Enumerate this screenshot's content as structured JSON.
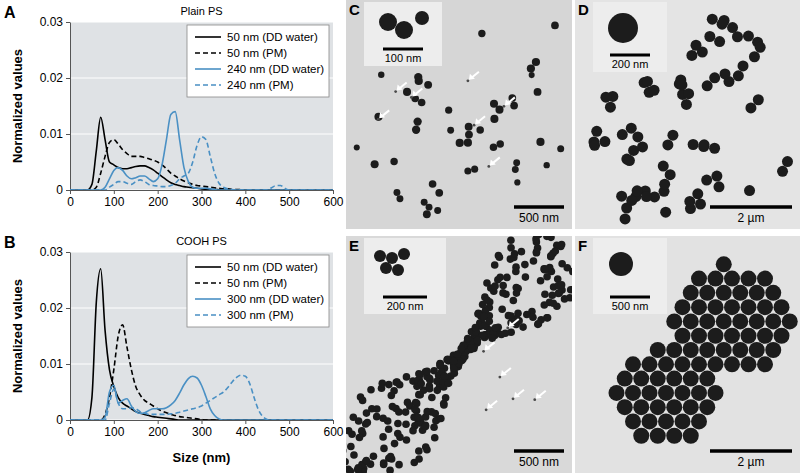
{
  "chart_data": [
    {
      "type": "line",
      "panel_label": "A",
      "title": "Plain PS",
      "y_label": "Normalized values",
      "xlim": [
        0,
        600
      ],
      "xticks": [
        0,
        100,
        200,
        300,
        400,
        500,
        600
      ],
      "ylim": [
        0,
        0.03
      ],
      "yticks": [
        0,
        0.01,
        0.02,
        0.03
      ],
      "grid": true,
      "legend": "upper right",
      "x": [
        0,
        10,
        20,
        30,
        40,
        50,
        60,
        70,
        80,
        90,
        100,
        110,
        120,
        130,
        140,
        150,
        160,
        170,
        180,
        190,
        200,
        210,
        220,
        230,
        240,
        250,
        260,
        270,
        280,
        290,
        300,
        310,
        320,
        330,
        340,
        350,
        360,
        370,
        380,
        390,
        400,
        410,
        420,
        430,
        440,
        450,
        460,
        470,
        480,
        490,
        500,
        550,
        600
      ],
      "series": [
        {
          "name": "50 nm (DD water)",
          "color": "#000000",
          "line_style": "solid",
          "values": [
            0,
            0,
            0,
            0,
            0,
            0.001,
            0.007,
            0.013,
            0.009,
            0.005,
            0.0045,
            0.004,
            0.0038,
            0.0038,
            0.004,
            0.0042,
            0.0043,
            0.0043,
            0.004,
            0.0036,
            0.003,
            0.0024,
            0.0018,
            0.0013,
            0.001,
            0.0008,
            0.0006,
            0.0005,
            0.0004,
            0.0003,
            0.0002,
            0.00015,
            0.0001,
            0.0001,
            5e-05,
            0,
            0,
            0,
            0,
            0,
            0,
            0,
            0,
            0,
            0,
            0,
            0,
            0,
            0,
            0,
            0,
            0,
            0
          ]
        },
        {
          "name": "50 nm (PM)",
          "color": "#000000",
          "line_style": "dashed",
          "values": [
            0,
            0,
            0,
            0,
            0,
            0,
            0.0005,
            0.003,
            0.006,
            0.0085,
            0.009,
            0.0082,
            0.0072,
            0.0065,
            0.006,
            0.006,
            0.006,
            0.0058,
            0.0056,
            0.0053,
            0.005,
            0.0045,
            0.0038,
            0.003,
            0.0025,
            0.002,
            0.0016,
            0.0013,
            0.001,
            0.0008,
            0.0007,
            0.0006,
            0.0005,
            0.0004,
            0.0003,
            0.0002,
            0.0002,
            0.0001,
            0.0001,
            5e-05,
            0,
            0,
            0,
            0,
            0,
            0,
            0,
            0,
            0,
            0,
            0,
            0,
            0
          ]
        },
        {
          "name": "240 nm (DD water)",
          "color": "#4a90c4",
          "line_style": "solid",
          "values": [
            0,
            0,
            0,
            0,
            0,
            0,
            0,
            0,
            0.0005,
            0.002,
            0.0035,
            0.004,
            0.0035,
            0.0025,
            0.002,
            0.0022,
            0.0025,
            0.0025,
            0.002,
            0.0015,
            0.002,
            0.0045,
            0.009,
            0.0135,
            0.014,
            0.009,
            0.004,
            0.0015,
            0.0005,
            0.0003,
            0.0003,
            0.0003,
            0.0002,
            0.0001,
            0,
            0,
            0,
            0,
            0,
            0,
            0,
            0,
            0,
            0,
            0,
            0,
            0,
            0,
            0,
            0,
            0,
            0,
            0
          ]
        },
        {
          "name": "240 nm (PM)",
          "color": "#4a90c4",
          "line_style": "dashed",
          "values": [
            0,
            0,
            0,
            0,
            0,
            0,
            0,
            0,
            0,
            0.0005,
            0.001,
            0.0015,
            0.0015,
            0.0012,
            0.001,
            0.0015,
            0.0018,
            0.0015,
            0.001,
            0.0008,
            0.0007,
            0.0006,
            0.0006,
            0.0008,
            0.0012,
            0.002,
            0.0025,
            0.003,
            0.005,
            0.008,
            0.0095,
            0.009,
            0.006,
            0.003,
            0.0012,
            0.0005,
            0.0002,
            0.0001,
            0,
            0,
            0,
            0,
            0,
            0,
            0,
            0,
            0.0004,
            0.0008,
            0.0008,
            0.0003,
            0,
            0,
            0
          ]
        }
      ]
    },
    {
      "type": "line",
      "panel_label": "B",
      "title": "COOH PS",
      "y_label": "Normalized values",
      "x_label": "Size (nm)",
      "xlim": [
        0,
        600
      ],
      "xticks": [
        0,
        100,
        200,
        300,
        400,
        500,
        600
      ],
      "ylim": [
        0,
        0.03
      ],
      "yticks": [
        0,
        0.01,
        0.02,
        0.03
      ],
      "grid": true,
      "legend": "upper right",
      "x": [
        0,
        10,
        20,
        30,
        40,
        50,
        60,
        70,
        80,
        90,
        100,
        110,
        120,
        130,
        140,
        150,
        160,
        170,
        180,
        190,
        200,
        210,
        220,
        230,
        240,
        250,
        260,
        270,
        280,
        290,
        300,
        310,
        320,
        330,
        340,
        350,
        360,
        370,
        380,
        390,
        400,
        410,
        420,
        430,
        440,
        450,
        460,
        470,
        480,
        490,
        500,
        550,
        600
      ],
      "series": [
        {
          "name": "50 nm (DD water)",
          "color": "#000000",
          "line_style": "solid",
          "values": [
            0,
            0,
            0,
            0,
            0,
            0.004,
            0.021,
            0.027,
            0.016,
            0.009,
            0.006,
            0.004,
            0.003,
            0.0025,
            0.002,
            0.0015,
            0.0012,
            0.001,
            0.0008,
            0.0006,
            0.0005,
            0.0004,
            0.0003,
            0.0002,
            0.0001,
            0,
            0,
            0,
            0,
            0,
            0,
            0,
            0,
            0,
            0,
            0,
            0,
            0,
            0,
            0,
            0,
            0,
            0,
            0,
            0,
            0,
            0,
            0,
            0,
            0,
            0,
            0,
            0
          ]
        },
        {
          "name": "50 nm (PM)",
          "color": "#000000",
          "line_style": "dashed",
          "values": [
            0,
            0,
            0,
            0,
            0,
            0,
            0,
            0,
            0.001,
            0.004,
            0.009,
            0.015,
            0.017,
            0.013,
            0.009,
            0.006,
            0.0045,
            0.0035,
            0.003,
            0.0025,
            0.002,
            0.0016,
            0.0013,
            0.001,
            0.0008,
            0.0006,
            0.0005,
            0.0004,
            0.0003,
            0.0002,
            0.0001,
            0,
            0,
            0,
            0,
            0,
            0,
            0,
            0,
            0,
            0,
            0,
            0,
            0,
            0,
            0,
            0,
            0,
            0,
            0,
            0,
            0,
            0
          ]
        },
        {
          "name": "300 nm (DD water)",
          "color": "#4a90c4",
          "line_style": "solid",
          "values": [
            0,
            0,
            0,
            0,
            0,
            0,
            0,
            0,
            0.0005,
            0.005,
            0.0062,
            0.003,
            0.0035,
            0.0038,
            0.0025,
            0.0015,
            0.0012,
            0.0013,
            0.0017,
            0.002,
            0.002,
            0.002,
            0.0022,
            0.0027,
            0.0035,
            0.0048,
            0.0063,
            0.0074,
            0.0078,
            0.0075,
            0.0062,
            0.0042,
            0.002,
            0.0008,
            0.0002,
            0,
            0,
            0,
            0,
            0,
            0,
            0,
            0,
            0,
            0,
            0,
            0,
            0,
            0,
            0,
            0,
            0,
            0
          ]
        },
        {
          "name": "300 nm (PM)",
          "color": "#4a90c4",
          "line_style": "dashed",
          "values": [
            0,
            0,
            0,
            0,
            0,
            0,
            0,
            0,
            0,
            0.003,
            0.0055,
            0.003,
            0.002,
            0.002,
            0.0022,
            0.002,
            0.0015,
            0.0012,
            0.001,
            0.001,
            0.001,
            0.001,
            0.001,
            0.0011,
            0.0012,
            0.0014,
            0.0016,
            0.0018,
            0.002,
            0.0022,
            0.0025,
            0.003,
            0.0035,
            0.004,
            0.0045,
            0.005,
            0.0058,
            0.0068,
            0.0076,
            0.008,
            0.0078,
            0.0065,
            0.004,
            0.0018,
            0.0006,
            0.0001,
            0,
            0,
            0,
            0,
            0,
            0,
            0
          ]
        }
      ]
    }
  ],
  "micrographs": [
    {
      "label": "C",
      "scale_bar": "500 nm",
      "inset_scale_bar": "100 nm"
    },
    {
      "label": "D",
      "scale_bar": "2 µm",
      "inset_scale_bar": "200 nm"
    },
    {
      "label": "E",
      "scale_bar": "500 nm",
      "inset_scale_bar": "200 nm"
    },
    {
      "label": "F",
      "scale_bar": "2 µm",
      "inset_scale_bar": "500 nm"
    }
  ]
}
